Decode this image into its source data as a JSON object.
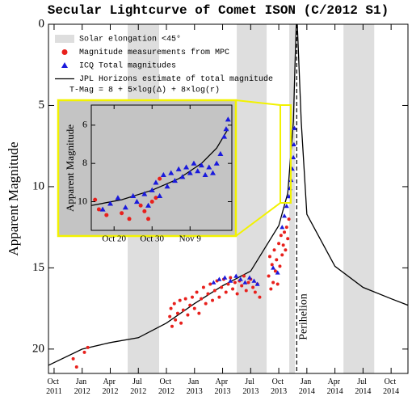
{
  "chart_data": [
    {
      "type": "scatter",
      "title": "Secular Lightcurve of Comet ISON (C/2012 S1)",
      "y_label": "Apparent Magnitude",
      "xlim": [
        2011.7,
        2014.9
      ],
      "ylim": [
        21.5,
        0
      ],
      "xticks": [
        {
          "value": 2011.75,
          "label": "Oct 2011"
        },
        {
          "value": 2012.0,
          "label": "Jan 2012"
        },
        {
          "value": 2012.25,
          "label": "Apr 2012"
        },
        {
          "value": 2012.5,
          "label": "Jul 2012"
        },
        {
          "value": 2012.75,
          "label": "Oct 2012"
        },
        {
          "value": 2013.0,
          "label": "Jan 2013"
        },
        {
          "value": 2013.25,
          "label": "Apr 2013"
        },
        {
          "value": 2013.5,
          "label": "Jul 2013"
        },
        {
          "value": 2013.75,
          "label": "Oct 2013"
        },
        {
          "value": 2014.0,
          "label": "Jan 2014"
        },
        {
          "value": 2014.25,
          "label": "Apr 2014"
        },
        {
          "value": 2014.5,
          "label": "Jul 2014"
        },
        {
          "value": 2014.75,
          "label": "Oct 2014"
        }
      ],
      "yticks": [
        0,
        5,
        10,
        15,
        20
      ],
      "grid": false,
      "legend": "top-left",
      "legend_note": "T-Mag = 8  + 5×log(Δ) + 8×log(r)",
      "annotations": [
        {
          "text": "Perihelion",
          "x": 2013.91
        }
      ],
      "series": [
        {
          "name": "Solar elongation <45°",
          "type": "band",
          "color": "#dedede",
          "ranges": [
            [
              2012.405,
              2012.685
            ],
            [
              2013.376,
              2013.642
            ],
            [
              2013.843,
              2013.894
            ],
            [
              2014.326,
              2014.6
            ]
          ]
        },
        {
          "name": "Magnitude measurements from MPC",
          "type": "scatter",
          "marker": "circle",
          "color": "#e8201c",
          "x": [
            2011.92,
            2011.95,
            2012.02,
            2012.05,
            2012.78,
            2012.79,
            2012.8,
            2012.82,
            2012.83,
            2012.85,
            2012.87,
            2012.88,
            2012.9,
            2012.92,
            2012.94,
            2012.96,
            2012.98,
            2013.0,
            2013.02,
            2013.04,
            2013.06,
            2013.08,
            2013.1,
            2013.12,
            2013.14,
            2013.16,
            2013.18,
            2013.2,
            2013.22,
            2013.24,
            2013.26,
            2013.28,
            2013.3,
            2013.32,
            2013.34,
            2013.36,
            2013.38,
            2013.4,
            2013.42,
            2013.44,
            2013.46,
            2013.48,
            2013.5,
            2013.52,
            2013.54,
            2013.56,
            2013.58,
            2013.66,
            2013.67,
            2013.68,
            2013.69,
            2013.7,
            2013.71,
            2013.72,
            2013.73,
            2013.74,
            2013.75,
            2013.76,
            2013.77,
            2013.78,
            2013.79,
            2013.8,
            2013.81,
            2013.82,
            2013.83,
            2013.84
          ],
          "values": [
            20.6,
            21.1,
            20.2,
            19.9,
            18.0,
            17.5,
            18.6,
            17.2,
            18.2,
            17.8,
            17.0,
            18.4,
            17.6,
            16.9,
            17.9,
            17.3,
            16.8,
            17.5,
            16.5,
            17.8,
            16.9,
            16.2,
            17.2,
            16.6,
            16.0,
            17.0,
            16.4,
            15.8,
            16.8,
            16.2,
            15.7,
            16.5,
            16.0,
            15.6,
            16.3,
            15.9,
            16.6,
            15.8,
            16.1,
            15.5,
            16.4,
            15.9,
            15.7,
            16.2,
            16.5,
            16.0,
            16.8,
            15.5,
            14.3,
            16.3,
            14.8,
            15.9,
            13.9,
            15.2,
            14.5,
            16.0,
            13.5,
            14.9,
            13.0,
            14.2,
            13.6,
            12.8,
            13.9,
            12.5,
            13.2,
            12.0
          ]
        },
        {
          "name": "ICQ Total magnitudes",
          "type": "scatter",
          "marker": "triangle",
          "color": "#1a1adc",
          "x": [
            2013.17,
            2013.22,
            2013.27,
            2013.32,
            2013.37,
            2013.41,
            2013.45,
            2013.49,
            2013.53,
            2013.56,
            2013.7,
            2013.74,
            2013.78,
            2013.8,
            2013.82,
            2013.84,
            2013.85,
            2013.86,
            2013.87,
            2013.88,
            2013.885,
            2013.89
          ],
          "values": [
            15.9,
            15.7,
            15.6,
            15.8,
            15.5,
            15.7,
            15.9,
            15.6,
            15.8,
            16.0,
            15.0,
            15.3,
            12.5,
            11.8,
            11.2,
            10.6,
            10.1,
            9.6,
            8.9,
            8.2,
            7.4,
            6.4
          ]
        },
        {
          "name": "JPL Horizons estimate of total magnitude",
          "type": "line",
          "color": "#000000",
          "x": [
            2011.7,
            2012.0,
            2012.25,
            2012.5,
            2012.75,
            2013.0,
            2013.25,
            2013.5,
            2013.75,
            2013.83,
            2013.88,
            2013.905,
            2013.915,
            2013.95,
            2014.0,
            2014.25,
            2014.5,
            2014.75,
            2014.9
          ],
          "values": [
            21.0,
            20.0,
            19.6,
            19.3,
            18.4,
            17.2,
            16.1,
            15.2,
            12.4,
            10.4,
            6.0,
            0,
            0,
            6.0,
            11.7,
            14.9,
            16.2,
            16.9,
            17.3
          ]
        }
      ]
    },
    {
      "type": "scatter",
      "y_label": "Apparent Magnitude",
      "xlim": [
        287,
        324
      ],
      "ylim": [
        11.5,
        4.95
      ],
      "xticks": [
        {
          "value": 293,
          "label": "Oct 20"
        },
        {
          "value": 303,
          "label": "Oct 30"
        },
        {
          "value": 313,
          "label": "Nov 9"
        }
      ],
      "yticks": [
        6,
        8,
        10
      ],
      "grid": false,
      "series": [
        {
          "type": "scatter",
          "marker": "circle",
          "color": "#e8201c",
          "x": [
            288,
            289,
            291,
            295,
            297,
            300,
            301,
            302,
            303,
            304,
            305
          ],
          "values": [
            9.9,
            10.4,
            10.7,
            10.6,
            10.9,
            10.2,
            10.5,
            10.9,
            10.0,
            9.8,
            8.8
          ]
        },
        {
          "type": "scatter",
          "marker": "triangle",
          "color": "#1a1adc",
          "x": [
            290,
            292,
            294,
            296,
            298,
            299,
            301,
            302,
            303,
            304,
            305,
            306,
            307,
            308,
            309,
            310,
            311,
            312,
            313,
            314,
            315,
            316,
            317,
            318,
            319,
            320,
            321,
            322,
            322.5,
            323
          ],
          "values": [
            10.4,
            10.1,
            9.8,
            10.3,
            9.7,
            10.0,
            9.6,
            10.2,
            9.4,
            9.0,
            9.7,
            8.6,
            9.2,
            8.5,
            8.9,
            8.3,
            8.7,
            8.2,
            8.5,
            8.0,
            8.4,
            8.1,
            8.6,
            8.2,
            8.5,
            8.0,
            7.5,
            6.6,
            6.2,
            5.7
          ]
        },
        {
          "type": "line",
          "color": "#000000",
          "x": [
            287,
            295,
            303,
            310,
            316,
            320,
            323
          ],
          "values": [
            10.2,
            9.9,
            9.4,
            8.8,
            8.0,
            7.2,
            6.2
          ]
        }
      ]
    }
  ]
}
